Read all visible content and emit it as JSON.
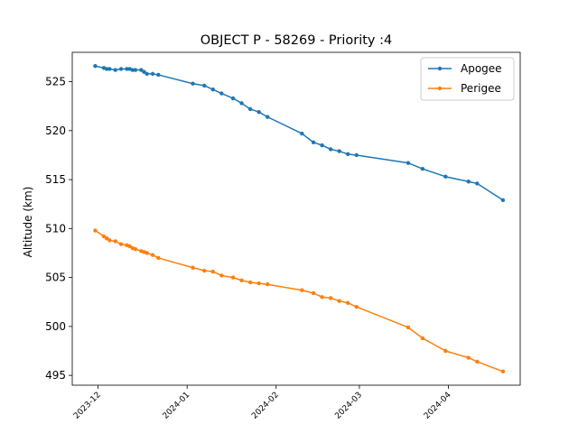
{
  "chart_data": {
    "type": "line",
    "title": "OBJECT P - 58269 - Priority :4",
    "xlabel": "",
    "ylabel": "Altitude (km)",
    "x_type": "date",
    "xlim": [
      "2023-11-22",
      "2024-04-26"
    ],
    "ylim": [
      494,
      528
    ],
    "x_ticks": [
      "2023-12-01",
      "2024-01-01",
      "2024-02-01",
      "2024-03-01",
      "2024-04-01"
    ],
    "x_tick_labels": [
      "2023-12",
      "2024-01",
      "2024-02",
      "2024-03",
      "2024-04"
    ],
    "y_ticks": [
      495,
      500,
      505,
      510,
      515,
      520,
      525
    ],
    "grid": false,
    "legend": "top-right",
    "series": [
      {
        "name": "Apogee",
        "color": "#1f77b4",
        "points": [
          [
            "2023-11-30",
            526.6
          ],
          [
            "2023-12-03",
            526.4
          ],
          [
            "2023-12-04",
            526.3
          ],
          [
            "2023-12-05",
            526.3
          ],
          [
            "2023-12-07",
            526.2
          ],
          [
            "2023-12-09",
            526.3
          ],
          [
            "2023-12-11",
            526.3
          ],
          [
            "2023-12-12",
            526.3
          ],
          [
            "2023-12-13",
            526.2
          ],
          [
            "2023-12-14",
            526.2
          ],
          [
            "2023-12-16",
            526.2
          ],
          [
            "2023-12-17",
            526.0
          ],
          [
            "2023-12-18",
            525.8
          ],
          [
            "2023-12-20",
            525.8
          ],
          [
            "2023-12-22",
            525.7
          ],
          [
            "2024-01-03",
            524.8
          ],
          [
            "2024-01-07",
            524.6
          ],
          [
            "2024-01-10",
            524.2
          ],
          [
            "2024-01-13",
            523.8
          ],
          [
            "2024-01-17",
            523.3
          ],
          [
            "2024-01-20",
            522.8
          ],
          [
            "2024-01-23",
            522.2
          ],
          [
            "2024-01-26",
            521.9
          ],
          [
            "2024-01-29",
            521.4
          ],
          [
            "2024-02-10",
            519.7
          ],
          [
            "2024-02-14",
            518.8
          ],
          [
            "2024-02-17",
            518.5
          ],
          [
            "2024-02-20",
            518.1
          ],
          [
            "2024-02-23",
            517.9
          ],
          [
            "2024-02-26",
            517.6
          ],
          [
            "2024-02-29",
            517.5
          ],
          [
            "2024-03-18",
            516.7
          ],
          [
            "2024-03-23",
            516.1
          ],
          [
            "2024-03-31",
            515.3
          ],
          [
            "2024-04-08",
            514.8
          ],
          [
            "2024-04-11",
            514.6
          ],
          [
            "2024-04-20",
            512.9
          ]
        ]
      },
      {
        "name": "Perigee",
        "color": "#ff7f0e",
        "points": [
          [
            "2023-11-30",
            509.8
          ],
          [
            "2023-12-03",
            509.2
          ],
          [
            "2023-12-04",
            509.0
          ],
          [
            "2023-12-05",
            508.8
          ],
          [
            "2023-12-07",
            508.7
          ],
          [
            "2023-12-09",
            508.4
          ],
          [
            "2023-12-11",
            508.3
          ],
          [
            "2023-12-12",
            508.2
          ],
          [
            "2023-12-13",
            508.0
          ],
          [
            "2023-12-14",
            507.9
          ],
          [
            "2023-12-16",
            507.7
          ],
          [
            "2023-12-17",
            507.6
          ],
          [
            "2023-12-18",
            507.5
          ],
          [
            "2023-12-20",
            507.3
          ],
          [
            "2023-12-22",
            507.0
          ],
          [
            "2024-01-03",
            506.0
          ],
          [
            "2024-01-07",
            505.7
          ],
          [
            "2024-01-10",
            505.6
          ],
          [
            "2024-01-13",
            505.2
          ],
          [
            "2024-01-17",
            505.0
          ],
          [
            "2024-01-20",
            504.7
          ],
          [
            "2024-01-23",
            504.5
          ],
          [
            "2024-01-26",
            504.4
          ],
          [
            "2024-01-29",
            504.3
          ],
          [
            "2024-02-10",
            503.7
          ],
          [
            "2024-02-14",
            503.4
          ],
          [
            "2024-02-17",
            503.0
          ],
          [
            "2024-02-20",
            502.9
          ],
          [
            "2024-02-23",
            502.6
          ],
          [
            "2024-02-26",
            502.4
          ],
          [
            "2024-02-29",
            502.0
          ],
          [
            "2024-03-18",
            499.9
          ],
          [
            "2024-03-23",
            498.8
          ],
          [
            "2024-03-31",
            497.5
          ],
          [
            "2024-04-08",
            496.8
          ],
          [
            "2024-04-11",
            496.4
          ],
          [
            "2024-04-20",
            495.4
          ]
        ]
      }
    ]
  }
}
